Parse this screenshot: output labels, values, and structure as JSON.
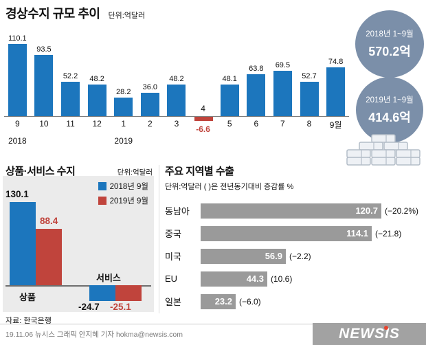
{
  "colors": {
    "bar_blue": "#1c76bd",
    "bar_red": "#c0443c",
    "circle_blue_gray": "#7b8fa9",
    "region_bar_gray": "#9a9a9a",
    "plot_bg": "#ebebeb",
    "logo_bg": "#a2a2a2",
    "logo_red_dot": "#e8432e"
  },
  "source": "자료: 한국은행",
  "footer": {
    "credit": "19.11.06 뉴시스 그래픽 안지혜 기자 hokma@newsis.com",
    "logo": "NEWSIS"
  },
  "illustration": "money-stacks",
  "chart_data": [
    {
      "type": "bar",
      "title": "경상수지 규모 추이",
      "unit": "단위:억달러",
      "categories": [
        "9",
        "10",
        "11",
        "12",
        "1",
        "2",
        "3",
        "4",
        "5",
        "6",
        "7",
        "8",
        "9월"
      ],
      "year_markers": [
        {
          "index": 0,
          "label": "2018"
        },
        {
          "index": 4,
          "label": "2019"
        }
      ],
      "values": [
        110.1,
        93.5,
        52.2,
        48.2,
        28.2,
        36.0,
        48.2,
        -6.6,
        48.1,
        63.8,
        69.5,
        52.7,
        74.8
      ],
      "annotations": [
        {
          "period": "2018년 1~9월",
          "value": "570.2억"
        },
        {
          "period": "2019년 1~9월",
          "value": "414.6억"
        }
      ]
    },
    {
      "type": "bar",
      "title": "상품·서비스 수지",
      "unit": "단위:억달러",
      "categories": [
        "상품",
        "서비스"
      ],
      "series": [
        {
          "name": "2018년 9월",
          "values": [
            130.1,
            -24.7
          ]
        },
        {
          "name": "2019년 9월",
          "values": [
            88.4,
            -25.1
          ]
        }
      ]
    },
    {
      "type": "bar",
      "orientation": "horizontal",
      "title": "주요 지역별 수출",
      "unit": "단위:억달러 ( )은 전년동기대비 증감률 %",
      "categories": [
        "동남아",
        "중국",
        "미국",
        "EU",
        "일본"
      ],
      "values": [
        120.7,
        114.1,
        56.9,
        44.3,
        23.2
      ],
      "change_labels": [
        "(−20.2%)",
        "(−21.8)",
        "(−2.2)",
        "(10.6)",
        "(−6.0)"
      ]
    }
  ]
}
